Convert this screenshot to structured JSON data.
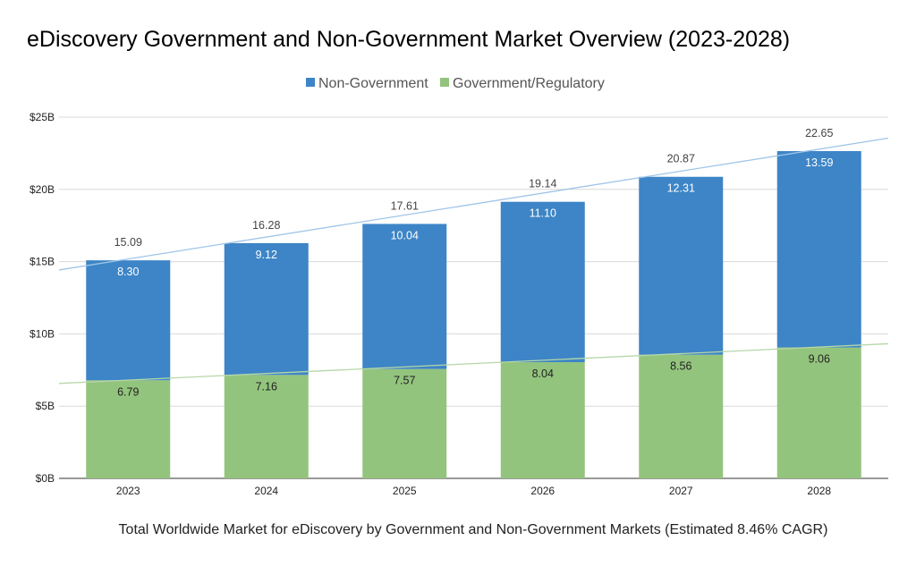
{
  "chart_data": {
    "type": "bar",
    "stacked": true,
    "title": "eDiscovery Government and Non-Government Market Overview (2023-2028)",
    "xlabel": "Total Worldwide Market for eDiscovery by Government and Non-Government Markets (Estimated 8.46% CAGR)",
    "ylabel": "",
    "categories": [
      "2023",
      "2024",
      "2025",
      "2026",
      "2027",
      "2028"
    ],
    "ylim": [
      0,
      25
    ],
    "yticks": [
      "$0B",
      "$5B",
      "$10B",
      "$15B",
      "$20B",
      "$25B"
    ],
    "grid": true,
    "legend_position": "top-center",
    "series": [
      {
        "name": "Government/Regulatory",
        "color": "#93c47d",
        "values": [
          6.79,
          7.16,
          7.57,
          8.04,
          8.56,
          9.06
        ],
        "value_labels": [
          "6.79",
          "7.16",
          "7.57",
          "8.04",
          "8.56",
          "9.06"
        ]
      },
      {
        "name": "Non-Government",
        "color": "#3d85c6",
        "values": [
          8.3,
          9.12,
          10.04,
          11.1,
          12.31,
          13.59
        ],
        "value_labels": [
          "8.30",
          "9.12",
          "10.04",
          "11.10",
          "12.31",
          "13.59"
        ]
      }
    ],
    "totals": [
      "15.09",
      "16.28",
      "17.61",
      "19.14",
      "20.87",
      "22.65"
    ],
    "legend_order": [
      "Non-Government",
      "Government/Regulatory"
    ],
    "trendlines": true
  }
}
